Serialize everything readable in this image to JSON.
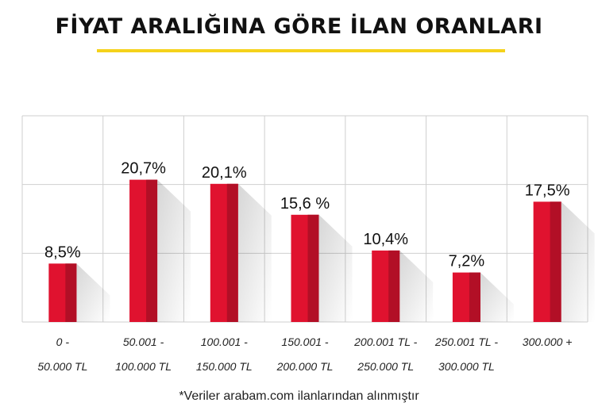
{
  "title": "FİYAT ARALIĞINA GÖRE İLAN ORANLARI",
  "footnote": "*Veriler arabam.com ilanlarından alınmıştır",
  "colors": {
    "bar": "#e0122f",
    "bar_dark": "#b20f26",
    "title_underline": "#f5d21b",
    "grid": "#cfcfcf"
  },
  "chart_data": {
    "type": "bar",
    "categories": [
      [
        "0 -",
        "50.000 TL"
      ],
      [
        "50.001 -",
        "100.000 TL"
      ],
      [
        "100.001 -",
        "150.000 TL"
      ],
      [
        "150.001 -",
        "200.000 TL"
      ],
      [
        "200.001 TL -",
        "250.000 TL"
      ],
      [
        "250.001 TL -",
        "300.000 TL"
      ],
      [
        "300.000 +",
        ""
      ]
    ],
    "values": [
      8.5,
      20.7,
      20.1,
      15.6,
      10.4,
      7.2,
      17.5
    ],
    "data_labels": [
      "8,5%",
      "20,7%",
      "20,1%",
      "15,6 %",
      "10,4%",
      "7,2%",
      "17,5%"
    ],
    "ylim": [
      0,
      30
    ],
    "grid": true,
    "legend": "none"
  }
}
